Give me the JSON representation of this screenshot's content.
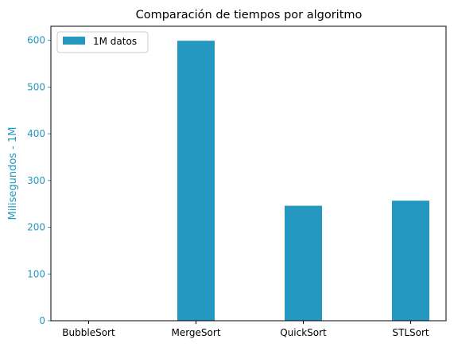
{
  "colors": {
    "bar": "#2498c0",
    "axis_text": "#2498c0",
    "frame": "#000000",
    "text": "#000000",
    "background": "#ffffff"
  },
  "chart_data": {
    "type": "bar",
    "title": "Comparación de tiempos por algoritmo",
    "xlabel": "",
    "ylabel": "Milisegundos - 1M",
    "categories": [
      "BubbleSort",
      "MergeSort",
      "QuickSort",
      "STLSort"
    ],
    "series": [
      {
        "name": "1M datos",
        "values": [
          0,
          599,
          246,
          257
        ]
      }
    ],
    "ylim": [
      0,
      630
    ],
    "yticks": [
      0,
      100,
      200,
      300,
      400,
      500,
      600
    ],
    "grid": false,
    "legend": "top-left"
  }
}
